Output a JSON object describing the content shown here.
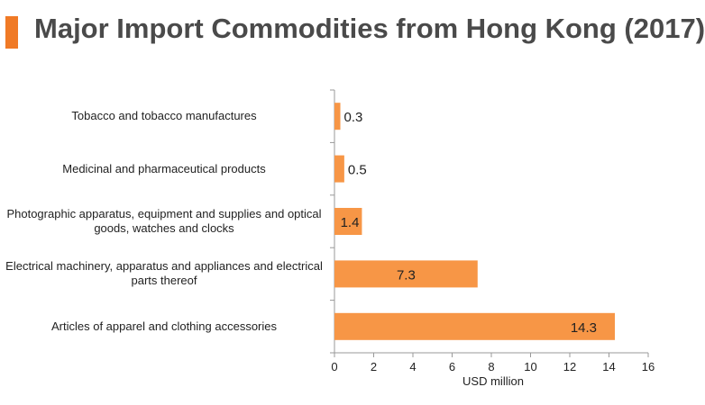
{
  "header": {
    "title": "Major Import Commodities from Hong Kong (2017)",
    "accent_color": "#F07A26"
  },
  "chart_data": {
    "type": "bar",
    "orientation": "horizontal",
    "title": "Major Import Commodities from Hong Kong (2017)",
    "xlabel": "USD million",
    "ylabel": "",
    "xlim": [
      0,
      16
    ],
    "x_ticks": [
      0,
      2,
      4,
      6,
      8,
      10,
      12,
      14,
      16
    ],
    "grid": false,
    "bar_color": "#F79646",
    "categories": [
      "Tobacco and tobacco manufactures",
      "Medicinal and pharmaceutical products",
      "Photographic apparatus, equipment and supplies and optical goods, watches and clocks",
      "Electrical machinery, apparatus and appliances and electrical parts thereof",
      "Articles of apparel and clothing accessories"
    ],
    "values": [
      0.3,
      0.5,
      1.4,
      7.3,
      14.3
    ],
    "data_labels": [
      "0.3",
      "0.5",
      "1.4",
      "7.3",
      "14.3"
    ]
  }
}
